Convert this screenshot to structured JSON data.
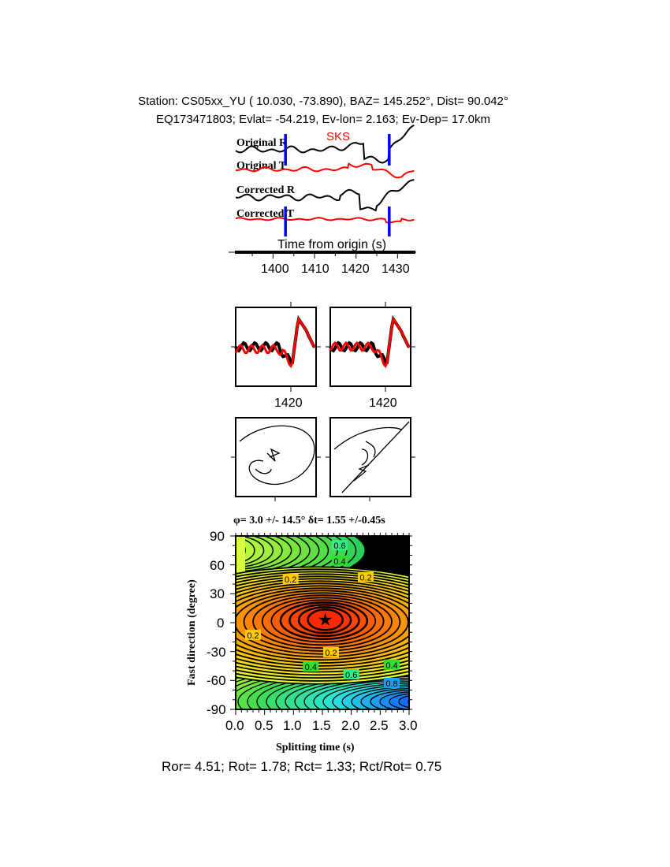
{
  "header": {
    "line1": "Station: CS05xx_YU (  10.030,  -73.890), BAZ=  145.252°, Dist=   90.042°",
    "line2": "EQ173471803; Evlat= -54.219, Ev-lon=   2.163; Ev-Dep= 17.0km"
  },
  "colors": {
    "radial": "#000000",
    "transverse": "#ff0000",
    "window": "#0000ff"
  },
  "chart_data": [
    {
      "type": "line",
      "title": "",
      "phase_label": "SKS",
      "trace_labels": [
        "Original R",
        "Original T",
        "Corrected R",
        "Corrected T"
      ],
      "xlabel": "Time from origin (s)",
      "xlim": [
        1391,
        1434
      ],
      "xticks": [
        "1400",
        "1410",
        "1420",
        "1430"
      ],
      "window": [
        1403,
        1428
      ]
    },
    {
      "type": "line",
      "title": "",
      "panels": [
        "waveform-original",
        "waveform-corrected"
      ],
      "xticks": [
        "1420",
        "1420"
      ]
    },
    {
      "type": "line",
      "title": "",
      "panels": [
        "particle-motion-original",
        "particle-motion-corrected"
      ]
    },
    {
      "type": "heatmap",
      "title": "φ= 3.0 +/- 14.5° δt= 1.55 +/-0.45s",
      "xlabel": "Splitting time (s)",
      "ylabel": "Fast direction (degree)",
      "xlim": [
        0,
        3
      ],
      "ylim": [
        -90,
        90
      ],
      "xticks": [
        "0.0",
        "0.5",
        "1.0",
        "1.5",
        "2.0",
        "2.5",
        "3.0"
      ],
      "yticks": [
        "90",
        "60",
        "30",
        "0",
        "-30",
        "-60",
        "-90"
      ],
      "best": {
        "dt": 1.55,
        "phi": 3.0
      },
      "contour_labels": [
        {
          "text": "0.6",
          "x": 1.8,
          "y": 80
        },
        {
          "text": "0.4",
          "x": 1.8,
          "y": 64
        },
        {
          "text": "0.2",
          "x": 0.95,
          "y": 45
        },
        {
          "text": "0.2",
          "x": 2.25,
          "y": 47
        },
        {
          "text": "0.2",
          "x": 0.3,
          "y": -13
        },
        {
          "text": "0.2",
          "x": 1.65,
          "y": -31
        },
        {
          "text": "0.4",
          "x": 1.3,
          "y": -46
        },
        {
          "text": "0.6",
          "x": 2.0,
          "y": -54
        },
        {
          "text": "0.4",
          "x": 2.7,
          "y": -44
        },
        {
          "text": "0.8",
          "x": 2.7,
          "y": -63
        }
      ]
    }
  ],
  "footer": "Ror= 4.51; Rot= 1.78; Rct= 1.33; Rct/Rot= 0.75"
}
